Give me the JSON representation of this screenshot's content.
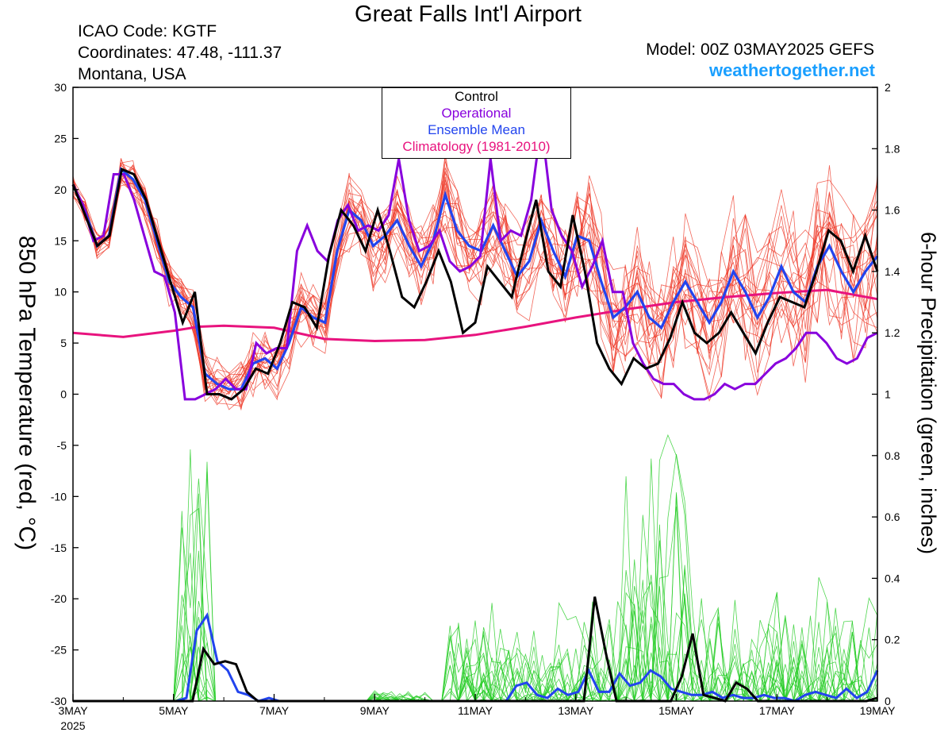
{
  "header": {
    "title": "Great Falls Int'l Airport",
    "icao": "ICAO Code: KGTF",
    "coords": "Coordinates: 47.48, -111.37",
    "region": "Montana, USA",
    "model": "Model: 00Z 03MAY2025 GEFS",
    "site": "weathertogether.net"
  },
  "legend": {
    "items": [
      {
        "label": "Control",
        "color": "#000000"
      },
      {
        "label": "Operational",
        "color": "#8800dd"
      },
      {
        "label": "Ensemble Mean",
        "color": "#2244ee"
      },
      {
        "label": "Climatology (1981-2010)",
        "color": "#e8137e"
      }
    ]
  },
  "chart_data": {
    "type": "line",
    "title": "Great Falls Int'l Airport",
    "xlabel": "",
    "ylabel": "850 hPa Temperature (red, °C)",
    "y2label": "6-hour Precipitation (green, inches)",
    "ylim": [
      -30,
      30
    ],
    "y2lim": [
      0,
      2
    ],
    "xlim": [
      0,
      16
    ],
    "x_unit": "days since 3MAY 00Z",
    "yticks": [
      "30",
      "25",
      "20",
      "15",
      "10",
      "5",
      "0",
      "-5",
      "-10",
      "-15",
      "-20",
      "-25",
      "-30"
    ],
    "y2ticks": [
      "2",
      "1.8",
      "1.6",
      "1.4",
      "1.2",
      "1",
      "0.8",
      "0.6",
      "0.4",
      "0.2",
      "0"
    ],
    "xticks": [
      {
        "label": "3MAY",
        "sub": "2025"
      },
      {
        "label": "5MAY",
        "sub": ""
      },
      {
        "label": "7MAY",
        "sub": ""
      },
      {
        "label": "9MAY",
        "sub": ""
      },
      {
        "label": "11MAY",
        "sub": ""
      },
      {
        "label": "13MAY",
        "sub": ""
      },
      {
        "label": "15MAY",
        "sub": ""
      },
      {
        "label": "17MAY",
        "sub": ""
      },
      {
        "label": "19MAY",
        "sub": ""
      }
    ],
    "grid": false,
    "legend_position": "top-center",
    "temperature": {
      "control": [
        20.5,
        17.5,
        14.5,
        15.5,
        22,
        21.5,
        19,
        15,
        11,
        7,
        10,
        0,
        0,
        -0.5,
        0.5,
        2.5,
        2,
        5,
        9,
        8.5,
        6.5,
        13.5,
        18,
        16.5,
        14,
        18,
        14,
        9.5,
        8.5,
        11,
        14,
        11,
        6,
        7,
        12.5,
        11,
        9.5,
        14.5,
        19,
        12,
        10.5,
        17.5,
        12,
        5,
        2.5,
        1,
        3.5,
        2.5,
        3,
        5.5,
        9,
        6,
        5,
        6,
        8,
        6,
        4,
        7,
        9.5,
        9,
        8.5,
        12,
        16,
        15,
        12,
        15.5,
        12
      ],
      "operational": [
        20.5,
        18.5,
        15,
        15.5,
        21.5,
        21.5,
        19,
        15.5,
        12,
        11.5,
        8,
        -0.5,
        -0.5,
        0,
        0.5,
        1.5,
        0.5,
        0.5,
        5,
        4,
        4.5,
        4.5,
        14,
        16.5,
        14,
        13,
        17,
        18.5,
        16,
        16.5,
        16,
        17.5,
        23,
        17,
        14,
        14.5,
        16,
        13,
        12,
        12.5,
        13.5,
        23,
        15,
        16,
        15.5,
        19,
        26.5,
        18,
        15.5,
        14,
        10.5,
        12.5,
        15,
        10,
        10,
        5,
        3,
        1.5,
        1,
        1,
        0,
        -0.5,
        -0.5,
        0,
        1,
        0.5,
        1,
        1,
        2,
        3,
        3.5,
        4.5,
        6,
        6,
        5,
        3.5,
        3,
        3.5,
        5.5,
        6
      ],
      "mean": [
        20.5,
        18,
        14.5,
        15.5,
        22,
        21,
        19,
        15,
        11,
        9.5,
        8.5,
        2,
        1,
        0.5,
        0.5,
        3,
        3.5,
        2.5,
        5,
        8.5,
        7.5,
        7,
        14,
        18,
        17,
        14.5,
        15.5,
        17,
        14.5,
        12.5,
        15,
        19.5,
        16,
        14.5,
        14,
        16.5,
        14,
        11.5,
        13,
        17,
        14,
        11.5,
        15.5,
        15,
        11,
        7.5,
        8.5,
        10,
        7.5,
        6.5,
        9,
        11,
        9,
        7,
        9,
        12,
        10,
        7.5,
        9.5,
        12.5,
        10,
        9,
        12.5,
        14.5,
        12,
        10,
        12,
        13.5
      ],
      "climatology_points": [
        [
          0,
          6
        ],
        [
          1,
          5.6
        ],
        [
          2,
          6.2
        ],
        [
          2.5,
          6.6
        ],
        [
          3,
          6.7
        ],
        [
          3.5,
          6.6
        ],
        [
          4,
          6.5
        ],
        [
          5,
          5.4
        ],
        [
          6,
          5.2
        ],
        [
          7,
          5.3
        ],
        [
          8,
          5.8
        ],
        [
          9,
          6.6
        ],
        [
          10,
          7.5
        ],
        [
          11,
          8.3
        ],
        [
          12,
          9
        ],
        [
          13,
          9.5
        ],
        [
          14,
          9.9
        ],
        [
          15,
          10.2
        ],
        [
          16,
          9.3
        ]
      ]
    },
    "precipitation": {
      "control": [
        0,
        0,
        0,
        0,
        0,
        0,
        0,
        0,
        0,
        0,
        0,
        0,
        0.17,
        0.12,
        0.13,
        0.12,
        0.03,
        0,
        0,
        0,
        0,
        0,
        0,
        0,
        0,
        0,
        0,
        0,
        0,
        0,
        0,
        0,
        0,
        0,
        0,
        0,
        0,
        0,
        0,
        0,
        0,
        0,
        0,
        0,
        0,
        0,
        0,
        0,
        0.34,
        0.16,
        0,
        0,
        0,
        0,
        0,
        0,
        0.08,
        0.22,
        0.02,
        0.01,
        0,
        0.06,
        0.04,
        0,
        0,
        0,
        0,
        0,
        0,
        0,
        0,
        0,
        0,
        0,
        0.01
      ],
      "mean": [
        0,
        0,
        0,
        0,
        0,
        0,
        0,
        0,
        0,
        0,
        0,
        0.01,
        0.23,
        0.28,
        0.13,
        0.1,
        0.03,
        0.02,
        0,
        0.01,
        0,
        0,
        0,
        0,
        0,
        0,
        0,
        0,
        0,
        0,
        0,
        0,
        0,
        0,
        0,
        0,
        0,
        0,
        0,
        0,
        0,
        0,
        0,
        0.05,
        0.06,
        0.02,
        0.01,
        0.04,
        0.02,
        0.03,
        0.1,
        0.03,
        0.03,
        0.09,
        0.05,
        0.06,
        0.1,
        0.08,
        0.04,
        0.03,
        0.02,
        0.02,
        0.03,
        0.01,
        0.02,
        0.01,
        0.01,
        0.02,
        0.01,
        0.01,
        0,
        0.02,
        0.03,
        0.02,
        0.01,
        0.04,
        0.01,
        0.03,
        0.1
      ]
    }
  }
}
